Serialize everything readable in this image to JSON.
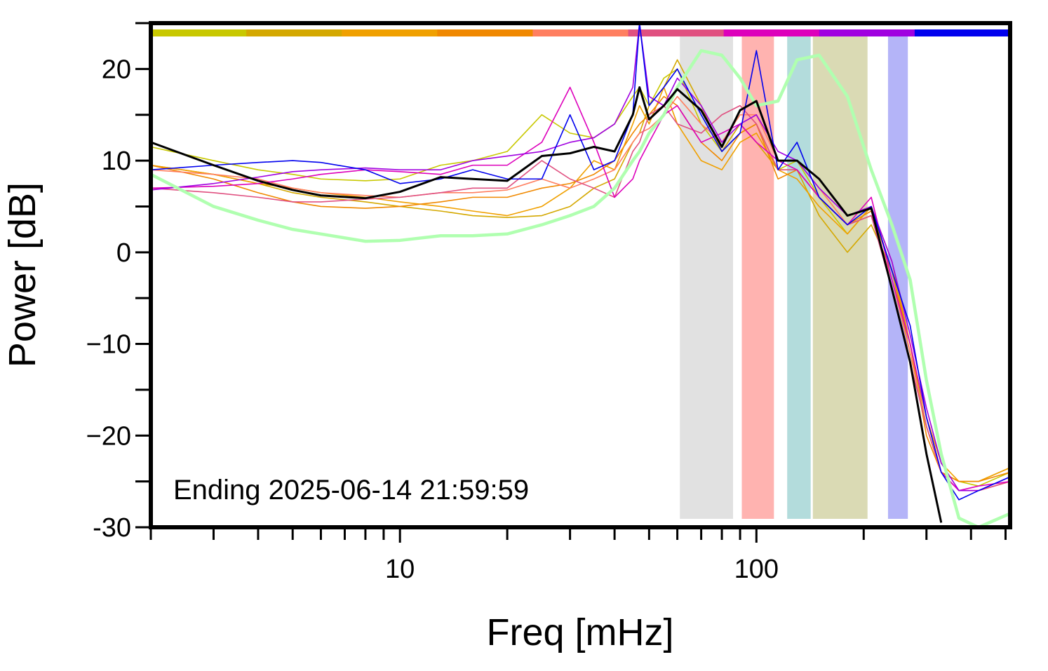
{
  "chart_data": {
    "type": "line",
    "xlabel": "Freq [mHz]",
    "ylabel": "Power [dB]",
    "annotation": "Ending 2025-06-14 21:59:59",
    "xscale": "log",
    "xlim": [
      2,
      515
    ],
    "ylim": [
      -30,
      25
    ],
    "xticks": [
      10,
      100
    ],
    "x_minor_ticks": [
      2,
      3,
      4,
      5,
      6,
      7,
      8,
      9,
      20,
      30,
      40,
      50,
      60,
      70,
      80,
      90,
      200,
      300,
      400,
      500
    ],
    "yticks": [
      -30,
      {
        "value": -20,
        "label": "−20"
      },
      {
        "value": -10,
        "label": "−10"
      },
      0,
      10,
      20
    ],
    "y_minor_ticks": [
      -25,
      -15,
      -5,
      5,
      15,
      25
    ],
    "bands": [
      {
        "from": 61,
        "to": 86,
        "color": "#e1e1e1"
      },
      {
        "from": 91,
        "to": 112,
        "color": "#ffb3b0"
      },
      {
        "from": 122,
        "to": 142,
        "color": "#b3dcdc"
      },
      {
        "from": 144,
        "to": 205,
        "color": "#dadab4"
      },
      {
        "from": 234,
        "to": 266,
        "color": "#b4b4f8"
      }
    ],
    "x": [
      2,
      3,
      4,
      5,
      6,
      8,
      10,
      13,
      16,
      20,
      25,
      30,
      35,
      40,
      45,
      47,
      50,
      55,
      60,
      70,
      80,
      90,
      100,
      115,
      130,
      150,
      180,
      210,
      240,
      270,
      300,
      330,
      370,
      420,
      515
    ],
    "series": [
      {
        "color": "#c8c800",
        "values": [
          11.5,
          10,
          9,
          8.5,
          8,
          7.8,
          8,
          9.5,
          10,
          11,
          15,
          13,
          12.5,
          14,
          17,
          18,
          16,
          19,
          20,
          14,
          11,
          13,
          14,
          9,
          10,
          6,
          2,
          5,
          -2,
          -10,
          -19,
          -24,
          -25,
          -25.5,
          -24
        ]
      },
      {
        "color": "#d4a800",
        "values": [
          9.5,
          8.5,
          7.5,
          6.5,
          6,
          5.5,
          5,
          4.5,
          4,
          3.8,
          4,
          5,
          7,
          8,
          12,
          13,
          16,
          18,
          21,
          16,
          11,
          14,
          12,
          9,
          9,
          4,
          0,
          3,
          -2,
          -11,
          -19,
          -24,
          -25,
          -25,
          -23.5
        ]
      },
      {
        "color": "#f0a000",
        "values": [
          9.5,
          8.5,
          7.5,
          7,
          6.5,
          6,
          5.5,
          5,
          4.5,
          4,
          5,
          7,
          10,
          9,
          14,
          16,
          14,
          18,
          14,
          10,
          9,
          12,
          13,
          9,
          8,
          5,
          2,
          5,
          -1,
          -10,
          -18,
          -23,
          -25,
          -25,
          -23.5
        ]
      },
      {
        "color": "#f08800",
        "values": [
          9.5,
          8,
          6.5,
          5.5,
          5,
          4.8,
          5,
          5.5,
          6,
          6,
          7,
          7.5,
          8.5,
          10,
          13,
          14,
          15,
          17,
          16,
          12,
          10,
          13,
          14,
          8,
          9,
          6,
          3,
          4.5,
          -2,
          -10,
          -20,
          -24,
          -25,
          -25,
          -24
        ]
      },
      {
        "color": "#ff7f60",
        "values": [
          9,
          8.5,
          8,
          7,
          6.5,
          6.2,
          6,
          6.5,
          6.5,
          6.8,
          8,
          7,
          8,
          9,
          12,
          13,
          13.5,
          15,
          17,
          14,
          12,
          15,
          15,
          10,
          10,
          7,
          3,
          4,
          -3,
          -11,
          -19,
          -24,
          -26,
          -26,
          -25
        ]
      },
      {
        "color": "#e05080",
        "values": [
          7,
          6.5,
          6,
          5.5,
          5.5,
          5.8,
          6,
          6.5,
          7,
          7,
          10,
          8,
          7,
          6,
          11,
          12,
          15,
          16,
          14,
          13,
          15,
          16,
          14,
          9,
          9,
          6,
          3,
          4,
          -4,
          -12,
          -19,
          -24,
          -26,
          -26,
          -25
        ]
      },
      {
        "color": "#dd00bb",
        "values": [
          7,
          7.2,
          7.5,
          8,
          8.5,
          9,
          8.8,
          8.5,
          9.5,
          9.5,
          12,
          18,
          12,
          6,
          8,
          10,
          12,
          15,
          16,
          12,
          13,
          14,
          12,
          10,
          9,
          6,
          3,
          6,
          -3,
          -10,
          -18,
          -24,
          -26,
          -25.5,
          -25
        ]
      },
      {
        "color": "#a000e0",
        "values": [
          6.8,
          7.5,
          8.2,
          8.8,
          9,
          9.2,
          9,
          9,
          10,
          10.5,
          11,
          12,
          12.5,
          14,
          18,
          25,
          17,
          16,
          19,
          16,
          12,
          14,
          15,
          11,
          10,
          7,
          4,
          5,
          -1,
          -9,
          -17,
          -23,
          -26,
          -26,
          -24.5
        ]
      },
      {
        "color": "#0000ee",
        "values": [
          9,
          9.5,
          9.8,
          10,
          9.8,
          9,
          7.5,
          8,
          9,
          8,
          8,
          15,
          9,
          10,
          15,
          25,
          16,
          18,
          20,
          15,
          11,
          13,
          22,
          9,
          12,
          6,
          3,
          5,
          -2,
          -8,
          -18,
          -24,
          -27,
          -26,
          -24.5
        ]
      },
      {
        "color": "#b0ffb0",
        "values": [
          8.5,
          5,
          3.5,
          2.5,
          2,
          1.2,
          1.3,
          1.8,
          1.8,
          2,
          3,
          4,
          5,
          7,
          10,
          11,
          13,
          15,
          18,
          22,
          21.5,
          19,
          16,
          16.5,
          21,
          21.5,
          17,
          9,
          3,
          -3,
          -14,
          -22,
          -29,
          -30,
          -28.5
        ]
      },
      {
        "color": "#000000",
        "values": [
          12,
          9.5,
          7.8,
          6.8,
          6.2,
          5.9,
          6.6,
          8.2,
          8,
          7.8,
          10.5,
          10.8,
          11.5,
          11,
          15,
          18,
          14.5,
          16,
          17.8,
          15.5,
          11.5,
          15.5,
          16.5,
          10,
          10,
          8,
          4,
          4.8,
          -4,
          -12,
          -22,
          -29.5,
          null,
          null,
          null
        ]
      }
    ]
  }
}
